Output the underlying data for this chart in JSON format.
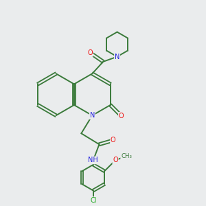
{
  "background_color": "#eaeced",
  "bond_color": "#3a7a3a",
  "atom_colors": {
    "O": "#ee1111",
    "N": "#2222dd",
    "Cl": "#22aa22",
    "H": "#888888",
    "C": "#3a7a3a"
  },
  "figsize": [
    3.0,
    3.0
  ],
  "dpi": 100
}
